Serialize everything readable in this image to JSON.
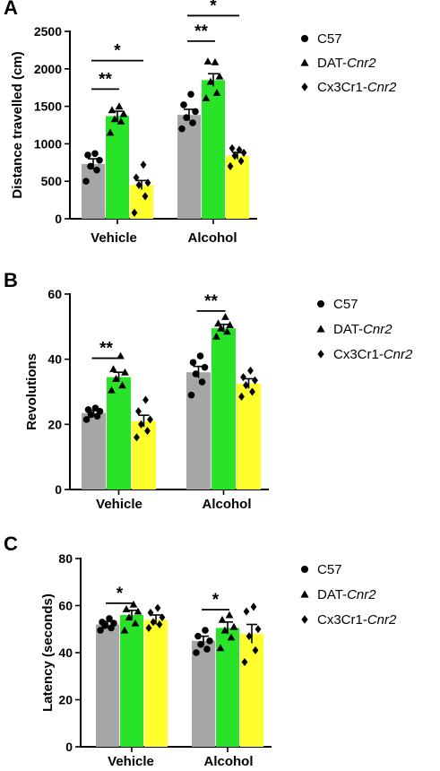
{
  "colors": {
    "C57": "#a6a6a6",
    "DAT-Cnr2": "#29e329",
    "Cx3Cr1-Cnr2": "#ffff2e",
    "axis": "#000000"
  },
  "legend": [
    {
      "prefix": "C57",
      "italic": "",
      "marker": "circle"
    },
    {
      "prefix": "DAT-",
      "italic": "Cnr2",
      "marker": "triangle"
    },
    {
      "prefix": "Cx3Cr1-",
      "italic": "Cnr2",
      "marker": "diamond"
    }
  ],
  "chart_data": [
    {
      "panel_label": "A",
      "type": "bar",
      "ylabel": "Distance travelled (cm)",
      "ylim": [
        0,
        2500
      ],
      "yticks": [
        0,
        500,
        1000,
        1500,
        2000,
        2500
      ],
      "categories": [
        "Vehicle",
        "Alcohol"
      ],
      "series": [
        {
          "name": "C57",
          "marker": "circle",
          "means": [
            730,
            1385
          ],
          "sem": [
            70,
            75
          ],
          "points": [
            [
              500,
              650,
              700,
              780,
              850,
              870
            ],
            [
              1200,
              1280,
              1350,
              1430,
              1520,
              1660
            ]
          ]
        },
        {
          "name": "DAT-Cnr2",
          "marker": "triangle",
          "means": [
            1370,
            1850
          ],
          "sem": [
            65,
            85
          ],
          "points": [
            [
              1150,
              1300,
              1330,
              1400,
              1450,
              1500
            ],
            [
              1610,
              1680,
              1830,
              1900,
              2100,
              2090
            ]
          ]
        },
        {
          "name": "Cx3Cr1-Cnr2",
          "marker": "diamond",
          "means": [
            450,
            840
          ],
          "sem": [
            60,
            45
          ],
          "points": [
            [
              80,
              300,
              450,
              480,
              550,
              720
            ],
            [
              700,
              770,
              840,
              880,
              940,
              920
            ]
          ]
        }
      ],
      "significance": [
        {
          "category": 0,
          "from": 0,
          "to": 1,
          "y": 1730,
          "label": "**"
        },
        {
          "category": 0,
          "from": 0,
          "to": 2,
          "y": 2110,
          "label": "*"
        },
        {
          "category": 1,
          "from": 0,
          "to": 1,
          "y": 2370,
          "label": "**"
        },
        {
          "category": 1,
          "from": 0,
          "to": 2,
          "y": 2710,
          "label": "*"
        }
      ]
    },
    {
      "panel_label": "B",
      "type": "bar",
      "ylabel": "Revolutions",
      "ylim": [
        0,
        60
      ],
      "yticks": [
        0,
        20,
        40,
        60
      ],
      "categories": [
        "Vehicle",
        "Alcohol"
      ],
      "series": [
        {
          "name": "C57",
          "marker": "circle",
          "means": [
            23.5,
            36
          ],
          "sem": [
            0.8,
            1.8
          ],
          "points": [
            [
              21.5,
              22.5,
              23,
              24,
              24.5,
              25
            ],
            [
              29,
              33,
              35.5,
              37.5,
              39,
              41
            ]
          ]
        },
        {
          "name": "DAT-Cnr2",
          "marker": "triangle",
          "means": [
            34.5,
            49.5
          ],
          "sem": [
            1.5,
            1.2
          ],
          "points": [
            [
              30.5,
              32,
              34,
              36,
              37,
              41
            ],
            [
              47,
              48.5,
              49.5,
              50.5,
              51,
              53
            ]
          ]
        },
        {
          "name": "Cx3Cr1-Cnr2",
          "marker": "diamond",
          "means": [
            21,
            32.5
          ],
          "sem": [
            1.8,
            1.5
          ],
          "points": [
            [
              16,
              18,
              20,
              21.5,
              24,
              27.5
            ],
            [
              28.5,
              30,
              32,
              33.5,
              34.5,
              36.5
            ]
          ]
        }
      ],
      "significance": [
        {
          "category": 0,
          "from": 0,
          "to": 1,
          "y": 40.3,
          "label": "**"
        },
        {
          "category": 1,
          "from": 0,
          "to": 1,
          "y": 54.8,
          "label": "**"
        }
      ]
    },
    {
      "panel_label": "C",
      "type": "bar",
      "ylabel": "Latency (seconds)",
      "ylim": [
        0,
        80
      ],
      "yticks": [
        0,
        20,
        40,
        60,
        80
      ],
      "categories": [
        "Vehicle",
        "Alcohol"
      ],
      "series": [
        {
          "name": "C57",
          "marker": "circle",
          "means": [
            52,
            45
          ],
          "sem": [
            1.2,
            2.0
          ],
          "points": [
            [
              49.5,
              50.5,
              51.5,
              52.5,
              53,
              54.5
            ],
            [
              40,
              41.5,
              43.5,
              45,
              47,
              49.5
            ]
          ]
        },
        {
          "name": "DAT-Cnr2",
          "marker": "triangle",
          "means": [
            56,
            50.5
          ],
          "sem": [
            2.0,
            2.5
          ],
          "points": [
            [
              49.5,
              52.5,
              55,
              57.5,
              58.5,
              60.5
            ],
            [
              42,
              46.5,
              49.5,
              51,
              54,
              56
            ]
          ]
        },
        {
          "name": "Cx3Cr1-Cnr2",
          "marker": "diamond",
          "means": [
            54,
            48
          ],
          "sem": [
            2.0,
            4.0
          ],
          "points": [
            [
              50.5,
              52,
              53,
              55,
              57,
              59
            ],
            [
              36,
              41,
              47,
              50,
              57.5,
              59.5
            ]
          ]
        }
      ],
      "significance": [
        {
          "category": 0,
          "from": 0,
          "to": 1,
          "y": 61,
          "label": "*"
        },
        {
          "category": 1,
          "from": 0,
          "to": 1,
          "y": 58.3,
          "label": "*"
        }
      ]
    }
  ]
}
